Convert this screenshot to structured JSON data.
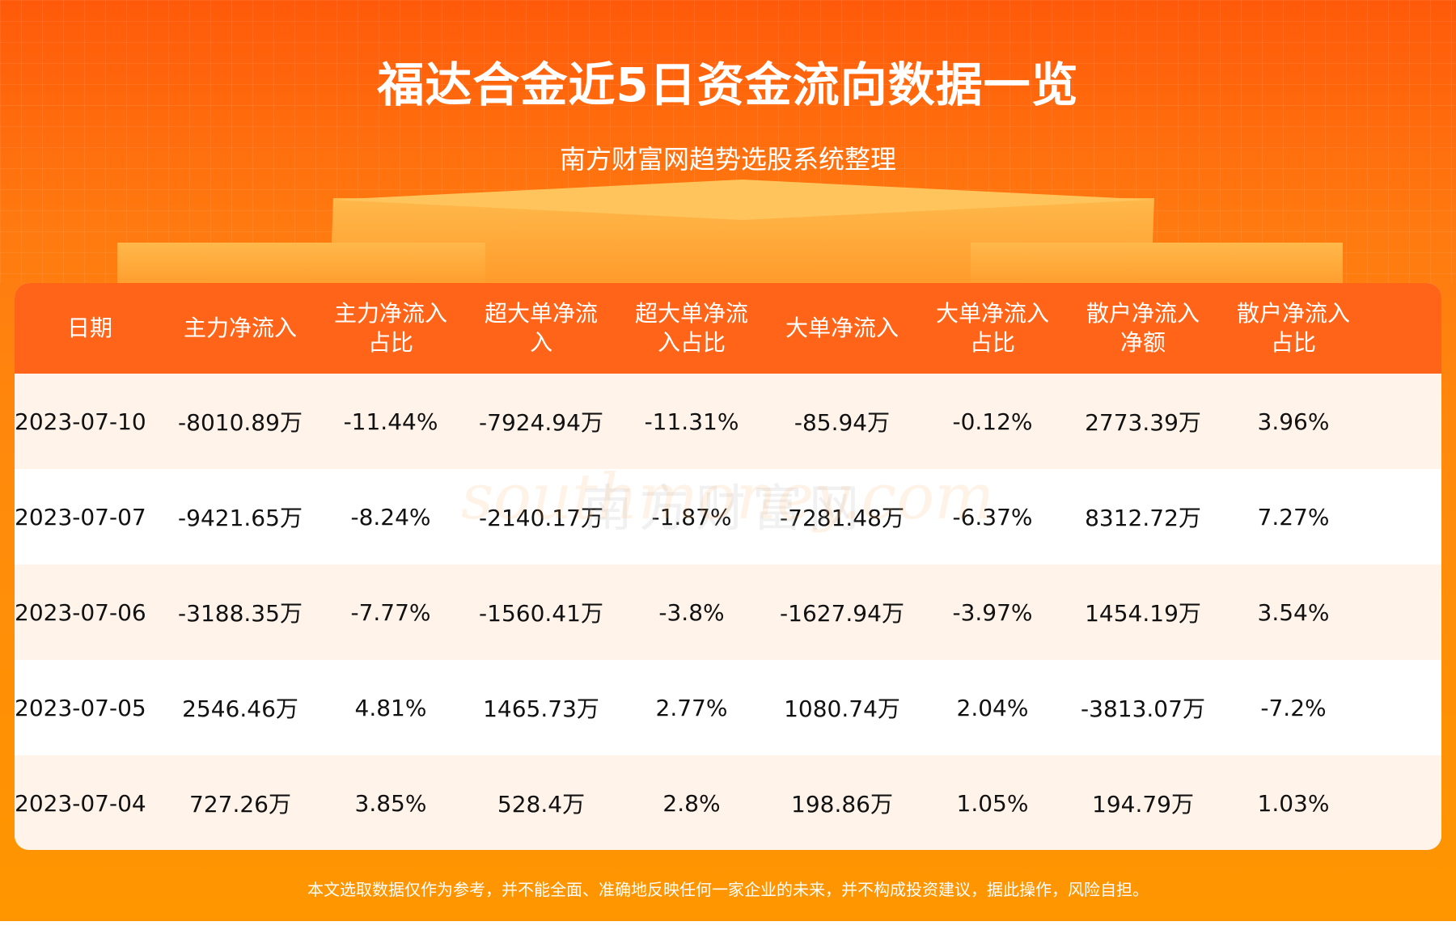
{
  "header": {
    "title": "福达合金近5日资金流向数据一览",
    "subtitle": "南方财富网趋势选股系统整理"
  },
  "table": {
    "columns": [
      "日期",
      "主力净流入",
      "主力净流入\n占比",
      "超大单净流\n入",
      "超大单净流\n入占比",
      "大单净流入",
      "大单净流入\n占比",
      "散户净流入\n净额",
      "散户净流入\n占比"
    ],
    "rows": [
      [
        "2023-07-10",
        "-8010.89万",
        "-11.44%",
        "-7924.94万",
        "-11.31%",
        "-85.94万",
        "-0.12%",
        "2773.39万",
        "3.96%"
      ],
      [
        "2023-07-07",
        "-9421.65万",
        "-8.24%",
        "-2140.17万",
        "-1.87%",
        "-7281.48万",
        "-6.37%",
        "8312.72万",
        "7.27%"
      ],
      [
        "2023-07-06",
        "-3188.35万",
        "-7.77%",
        "-1560.41万",
        "-3.8%",
        "-1627.94万",
        "-3.97%",
        "1454.19万",
        "3.54%"
      ],
      [
        "2023-07-05",
        "2546.46万",
        "4.81%",
        "1465.73万",
        "2.77%",
        "1080.74万",
        "2.04%",
        "-3813.07万",
        "-7.2%"
      ],
      [
        "2023-07-04",
        "727.26万",
        "3.85%",
        "528.4万",
        "2.8%",
        "198.86万",
        "1.05%",
        "194.79万",
        "1.03%"
      ]
    ]
  },
  "watermark": {
    "cn": "南方财富网",
    "en": "southmoney.com"
  },
  "footer": {
    "disclaimer": "本文选取数据仅作为参考，并不能全面、准确地反映任何一家企业的未来，并不构成投资建议，据此操作，风险自担。"
  },
  "colors": {
    "header_bg": "#ff6418",
    "row_odd": "#fff3ea",
    "row_even": "#ffffff",
    "page_bottom": "#ff9600"
  }
}
